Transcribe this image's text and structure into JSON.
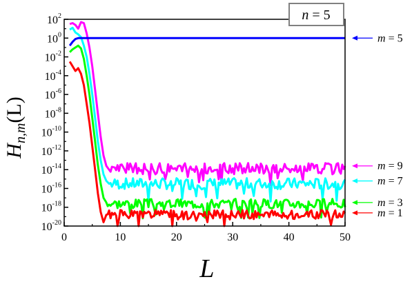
{
  "chart_data": {
    "type": "line",
    "title": "",
    "xlabel": "L",
    "ylabel_main": "H",
    "ylabel_sub": "n,m",
    "ylabel_arg": "(L)",
    "xlim": [
      0,
      50
    ],
    "ylim_exp": [
      -20,
      2
    ],
    "y_scale": "log",
    "x_ticks": [
      0,
      10,
      20,
      30,
      40,
      50
    ],
    "y_ticks_exp": [
      2,
      0,
      -2,
      -4,
      -6,
      -8,
      -10,
      -12,
      -14,
      -16,
      -18,
      -20
    ],
    "inset_label": {
      "variable": "n",
      "equals": " = 5"
    },
    "series": [
      {
        "name": "m = 9",
        "color": "#ff00ff",
        "start": [
          [
            1,
            1.5
          ],
          [
            1.5,
            1.6
          ],
          [
            2,
            1.4
          ],
          [
            2.5,
            1.0
          ],
          [
            3,
            1.7
          ],
          [
            3.5,
            1.6
          ],
          [
            4,
            0.5
          ],
          [
            4.5,
            -1.0
          ],
          [
            5,
            -3.0
          ],
          [
            5.5,
            -5.5
          ],
          [
            6,
            -8.0
          ],
          [
            6.5,
            -10.5
          ],
          [
            7,
            -12.5
          ],
          [
            7.5,
            -13.6
          ],
          [
            8,
            -14.0
          ]
        ],
        "noise_center": -13.9,
        "noise_amp": 0.6,
        "seed": 9
      },
      {
        "name": "m = 7",
        "color": "#00ffff",
        "start": [
          [
            1,
            0.9
          ],
          [
            1.5,
            1.1
          ],
          [
            2,
            0.6
          ],
          [
            2.5,
            0.4
          ],
          [
            3,
            0.1
          ],
          [
            3.5,
            -0.8
          ],
          [
            4,
            -2.0
          ],
          [
            4.5,
            -3.8
          ],
          [
            5,
            -6.0
          ],
          [
            5.5,
            -8.5
          ],
          [
            6,
            -11.0
          ],
          [
            6.5,
            -13.0
          ],
          [
            7,
            -14.5
          ],
          [
            7.5,
            -15.2
          ],
          [
            8,
            -15.5
          ]
        ],
        "noise_center": -15.5,
        "noise_amp": 0.6,
        "seed": 7
      },
      {
        "name": "m = 3",
        "color": "#00ff00",
        "start": [
          [
            1,
            -1.5
          ],
          [
            1.5,
            -1.2
          ],
          [
            2,
            -1.0
          ],
          [
            2.5,
            -0.8
          ],
          [
            3,
            -1.1
          ],
          [
            3.5,
            -2.2
          ],
          [
            4,
            -4.0
          ],
          [
            4.5,
            -6.0
          ],
          [
            5,
            -8.5
          ],
          [
            5.5,
            -11.0
          ],
          [
            6,
            -13.5
          ],
          [
            6.5,
            -15.5
          ],
          [
            7,
            -17.0
          ],
          [
            7.5,
            -17.5
          ]
        ],
        "noise_center": -17.6,
        "noise_amp": 0.5,
        "seed": 3
      },
      {
        "name": "m = 1",
        "color": "#ff0000",
        "start": [
          [
            1,
            -2.5
          ],
          [
            1.5,
            -3.0
          ],
          [
            2,
            -3.5
          ],
          [
            2.5,
            -3.2
          ],
          [
            3,
            -3.8
          ],
          [
            3.5,
            -5.0
          ],
          [
            4,
            -7.0
          ],
          [
            4.5,
            -9.0
          ],
          [
            5,
            -11.5
          ],
          [
            5.5,
            -14.0
          ],
          [
            6,
            -16.5
          ],
          [
            6.5,
            -18.5
          ],
          [
            7,
            -19.6
          ],
          [
            7.5,
            -18.8
          ]
        ],
        "noise_center": -18.8,
        "noise_amp": 0.5,
        "seed": 1
      },
      {
        "name": "m = 5",
        "color": "#0000ff",
        "start": [
          [
            1,
            -0.8
          ],
          [
            1.5,
            -0.4
          ],
          [
            2,
            -0.1
          ],
          [
            2.5,
            0.0
          ],
          [
            3,
            0.0
          ]
        ],
        "noise_center": 0.0,
        "noise_amp": 0.0,
        "seed": 5
      }
    ],
    "legend_annotations": [
      {
        "label": "m",
        "equals": " = 5",
        "color": "#0000ff",
        "y_exp": 0.0
      },
      {
        "label": "m",
        "equals": " = 9",
        "color": "#ff00ff",
        "y_exp": -13.6
      },
      {
        "label": "m",
        "equals": " = 7",
        "color": "#00ffff",
        "y_exp": -15.2
      },
      {
        "label": "m",
        "equals": " = 3",
        "color": "#00ff00",
        "y_exp": -17.5
      },
      {
        "label": "m",
        "equals": " = 1",
        "color": "#ff0000",
        "y_exp": -18.6
      }
    ]
  }
}
